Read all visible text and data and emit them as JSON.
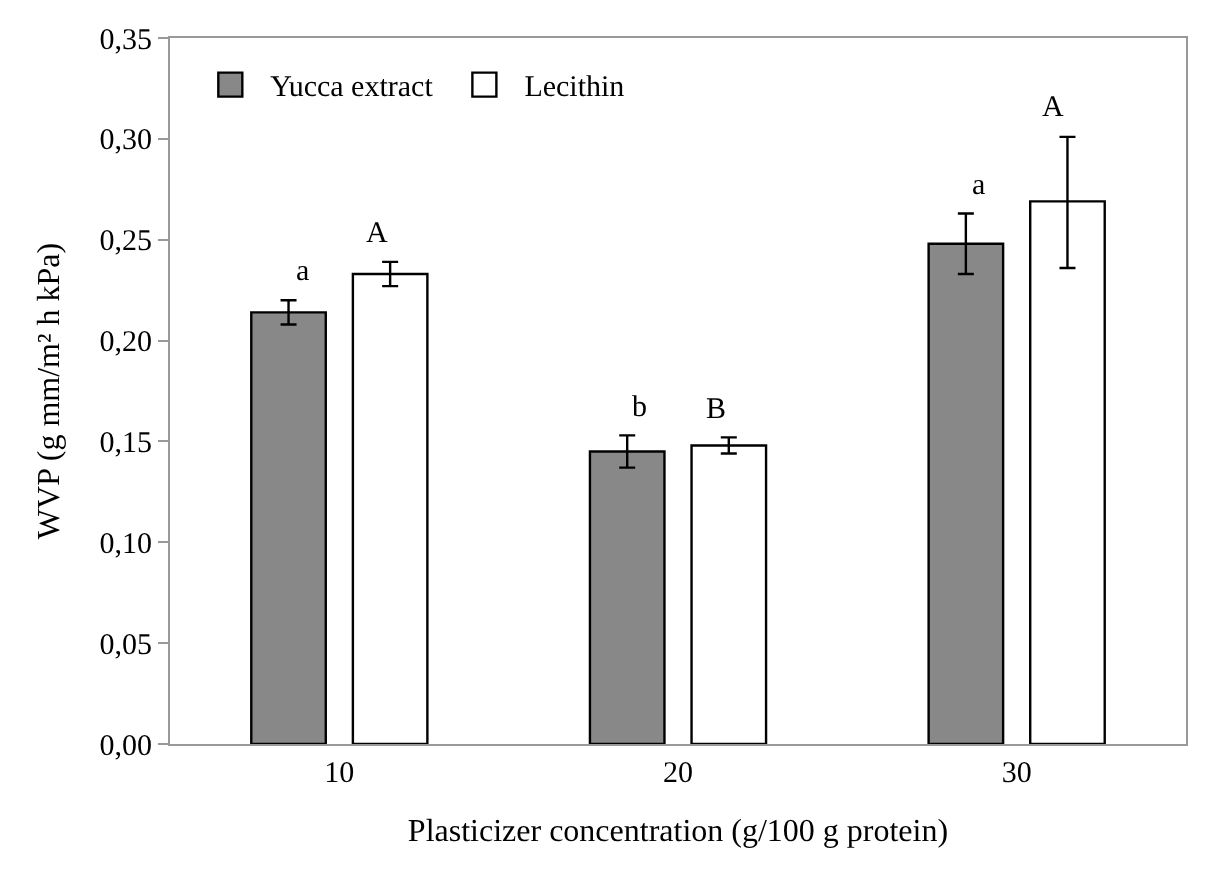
{
  "chart_data": {
    "type": "bar",
    "categories": [
      "10",
      "20",
      "30"
    ],
    "series": [
      {
        "name": "Yucca extract",
        "color": "#888888",
        "values": [
          0.214,
          0.145,
          0.248
        ],
        "errors": [
          0.006,
          0.008,
          0.015
        ]
      },
      {
        "name": "Lecithin",
        "color": "#ffffff",
        "values": [
          0.233,
          0.148,
          0.269
        ],
        "errors": [
          0.006,
          0.004,
          [
            0.236,
            0.301
          ]
        ]
      }
    ],
    "xlabel": "Plasticizer concentration (g/100 g protein)",
    "ylabel": "WVP (g mm/m² h kPa)",
    "ylim": [
      0,
      0.35
    ],
    "yticks": [
      {
        "value": 0,
        "label": "0,00"
      },
      {
        "value": 0.05,
        "label": "0,05"
      },
      {
        "value": 0.1,
        "label": "0,10"
      },
      {
        "value": 0.15,
        "label": "0,15"
      },
      {
        "value": 0.2,
        "label": "0,20"
      },
      {
        "value": 0.25,
        "label": "0,25"
      },
      {
        "value": 0.3,
        "label": "0,30"
      },
      {
        "value": 0.35,
        "label": "0,35"
      }
    ],
    "annotations": [
      "a",
      "A",
      "b",
      "B",
      "a",
      "A"
    ],
    "grid": false,
    "legend": "top left"
  }
}
